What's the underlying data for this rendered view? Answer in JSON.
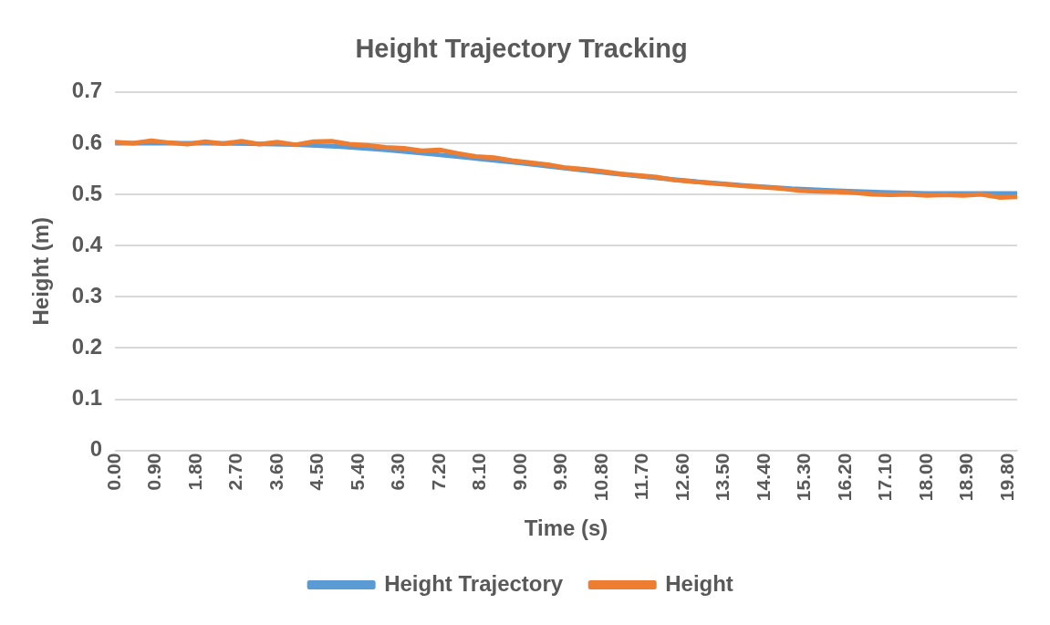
{
  "chart_data": {
    "type": "line",
    "title": "Height Trajectory Tracking",
    "xlabel": "Time (s)",
    "ylabel": "Height (m)",
    "xlim": [
      0,
      20
    ],
    "ylim": [
      0,
      0.7
    ],
    "xticks": [
      {
        "value": 0,
        "label": "0.00"
      },
      {
        "value": 0.9,
        "label": "0.90"
      },
      {
        "value": 1.8,
        "label": "1.80"
      },
      {
        "value": 2.7,
        "label": "2.70"
      },
      {
        "value": 3.6,
        "label": "3.60"
      },
      {
        "value": 4.5,
        "label": "4.50"
      },
      {
        "value": 5.4,
        "label": "5.40"
      },
      {
        "value": 6.3,
        "label": "6.30"
      },
      {
        "value": 7.2,
        "label": "7.20"
      },
      {
        "value": 8.1,
        "label": "8.10"
      },
      {
        "value": 9,
        "label": "9.00"
      },
      {
        "value": 9.9,
        "label": "9.90"
      },
      {
        "value": 10.8,
        "label": "10.80"
      },
      {
        "value": 11.7,
        "label": "11.70"
      },
      {
        "value": 12.6,
        "label": "12.60"
      },
      {
        "value": 13.5,
        "label": "13.50"
      },
      {
        "value": 14.4,
        "label": "14.40"
      },
      {
        "value": 15.3,
        "label": "15.30"
      },
      {
        "value": 16.2,
        "label": "16.20"
      },
      {
        "value": 17.1,
        "label": "17.10"
      },
      {
        "value": 18,
        "label": "18.00"
      },
      {
        "value": 18.9,
        "label": "18.90"
      },
      {
        "value": 19.8,
        "label": "19.80"
      }
    ],
    "yticks": [
      0,
      0.1,
      0.2,
      0.3,
      0.4,
      0.5,
      0.6,
      0.7
    ],
    "grid": "y",
    "legend": "bottom",
    "marker": "none",
    "line_style": "solid",
    "series": [
      {
        "name": "Height Trajectory",
        "color": "#5b9bd5",
        "x": [
          0,
          1,
          2,
          3,
          4,
          5,
          6,
          7,
          8,
          9,
          10,
          11,
          12,
          13,
          14,
          15,
          16,
          17,
          18,
          19,
          20
        ],
        "values": [
          0.6,
          0.6,
          0.6,
          0.599,
          0.597,
          0.593,
          0.587,
          0.579,
          0.57,
          0.561,
          0.551,
          0.541,
          0.532,
          0.524,
          0.517,
          0.511,
          0.507,
          0.504,
          0.502,
          0.502,
          0.502
        ]
      },
      {
        "name": "Height",
        "color": "#ed7d31",
        "x": [
          0,
          0.4,
          0.8,
          1.2,
          1.6,
          2,
          2.4,
          2.8,
          3.2,
          3.6,
          4,
          4.4,
          4.8,
          5.2,
          5.6,
          6,
          6.4,
          6.8,
          7.2,
          7.6,
          8,
          8.4,
          8.8,
          9.2,
          9.6,
          10,
          10.4,
          10.8,
          11.2,
          11.6,
          12,
          12.4,
          12.8,
          13.2,
          13.6,
          14,
          14.4,
          14.8,
          15.2,
          15.6,
          16,
          16.4,
          16.8,
          17.2,
          17.6,
          18,
          18.4,
          18.8,
          19.2,
          19.6,
          20
        ],
        "values": [
          0.602,
          0.6,
          0.605,
          0.601,
          0.598,
          0.603,
          0.599,
          0.604,
          0.598,
          0.602,
          0.597,
          0.603,
          0.604,
          0.598,
          0.596,
          0.592,
          0.59,
          0.585,
          0.587,
          0.58,
          0.574,
          0.572,
          0.566,
          0.562,
          0.558,
          0.552,
          0.549,
          0.545,
          0.54,
          0.537,
          0.534,
          0.528,
          0.525,
          0.522,
          0.519,
          0.516,
          0.514,
          0.511,
          0.507,
          0.506,
          0.505,
          0.503,
          0.5,
          0.499,
          0.5,
          0.498,
          0.499,
          0.498,
          0.5,
          0.494,
          0.495
        ]
      }
    ]
  }
}
